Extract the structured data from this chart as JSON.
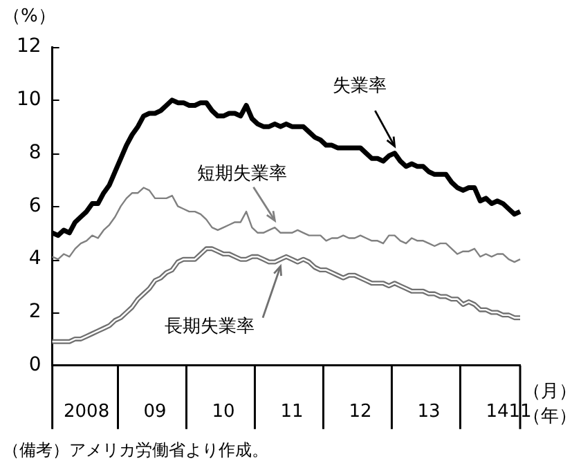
{
  "chart_data": {
    "type": "line",
    "ylabel": "（%）",
    "xlabel": "（年）",
    "categories": [
      null,
      null,
      null,
      null,
      null,
      null,
      "2008",
      null,
      null,
      null,
      null,
      null,
      null,
      null,
      null,
      null,
      null,
      null,
      "09",
      null,
      null,
      null,
      null,
      null,
      null,
      null,
      null,
      null,
      null,
      null,
      "10",
      null,
      null,
      null,
      null,
      null,
      null,
      null,
      null,
      null,
      null,
      null,
      "11",
      null,
      null,
      null,
      null,
      null,
      null,
      null,
      null,
      null,
      null,
      null,
      "12",
      null,
      null,
      null,
      null,
      null,
      null,
      null,
      null,
      null,
      null,
      null,
      "13",
      null,
      null,
      null,
      null,
      null,
      null,
      null,
      null,
      null,
      null,
      null,
      "14",
      null,
      null,
      null,
      "11"
    ],
    "ylim": [
      0,
      12
    ],
    "yticks": [
      0,
      2,
      4,
      6,
      8,
      10,
      12
    ],
    "grid": false,
    "legend": false,
    "marker": "none",
    "series": [
      {
        "name": "失業率",
        "color": "#000000",
        "values": [
          5.0,
          4.9,
          5.1,
          5.0,
          5.4,
          5.6,
          5.8,
          6.1,
          6.1,
          6.5,
          6.8,
          7.3,
          7.8,
          8.3,
          8.7,
          9.0,
          9.4,
          9.5,
          9.5,
          9.6,
          9.8,
          10.0,
          9.9,
          9.9,
          9.8,
          9.8,
          9.9,
          9.9,
          9.6,
          9.4,
          9.4,
          9.5,
          9.5,
          9.4,
          9.8,
          9.3,
          9.1,
          9.0,
          9.0,
          9.1,
          9.0,
          9.1,
          9.0,
          9.0,
          9.0,
          8.8,
          8.6,
          8.5,
          8.3,
          8.3,
          8.2,
          8.2,
          8.2,
          8.2,
          8.2,
          8.0,
          7.8,
          7.8,
          7.7,
          7.9,
          8.0,
          7.7,
          7.5,
          7.6,
          7.5,
          7.5,
          7.3,
          7.2,
          7.2,
          7.2,
          6.9,
          6.7,
          6.6,
          6.7,
          6.7,
          6.2,
          6.3,
          6.1,
          6.2,
          6.1,
          5.9,
          5.7,
          5.8
        ]
      },
      {
        "name": "短期失業率",
        "color": "#808080",
        "values": [
          4.1,
          4.0,
          4.2,
          4.1,
          4.4,
          4.6,
          4.7,
          4.9,
          4.8,
          5.1,
          5.3,
          5.6,
          6.0,
          6.3,
          6.5,
          6.5,
          6.7,
          6.6,
          6.3,
          6.3,
          6.3,
          6.4,
          6.0,
          5.9,
          5.8,
          5.8,
          5.7,
          5.5,
          5.2,
          5.1,
          5.2,
          5.3,
          5.4,
          5.4,
          5.8,
          5.2,
          5.0,
          5.0,
          5.1,
          5.2,
          5.0,
          5.0,
          5.0,
          5.1,
          5.0,
          4.9,
          4.9,
          4.9,
          4.7,
          4.8,
          4.8,
          4.9,
          4.8,
          4.8,
          4.9,
          4.8,
          4.7,
          4.7,
          4.6,
          4.9,
          4.9,
          4.7,
          4.6,
          4.8,
          4.7,
          4.7,
          4.6,
          4.5,
          4.6,
          4.6,
          4.4,
          4.2,
          4.3,
          4.3,
          4.4,
          4.1,
          4.2,
          4.1,
          4.2,
          4.2,
          4.0,
          3.9,
          4.0
        ]
      },
      {
        "name": "長期失業率",
        "color": "#707070",
        "values": [
          0.9,
          0.9,
          0.9,
          0.9,
          1.0,
          1.0,
          1.1,
          1.2,
          1.3,
          1.4,
          1.5,
          1.7,
          1.8,
          2.0,
          2.2,
          2.5,
          2.7,
          2.9,
          3.2,
          3.3,
          3.5,
          3.6,
          3.9,
          4.0,
          4.0,
          4.0,
          4.2,
          4.4,
          4.4,
          4.3,
          4.2,
          4.2,
          4.1,
          4.0,
          4.0,
          4.1,
          4.1,
          4.0,
          3.9,
          3.9,
          4.0,
          4.1,
          4.0,
          3.9,
          4.0,
          3.9,
          3.7,
          3.6,
          3.6,
          3.5,
          3.4,
          3.3,
          3.4,
          3.4,
          3.3,
          3.2,
          3.1,
          3.1,
          3.1,
          3.0,
          3.1,
          3.0,
          2.9,
          2.8,
          2.8,
          2.8,
          2.7,
          2.7,
          2.6,
          2.6,
          2.5,
          2.5,
          2.3,
          2.4,
          2.3,
          2.1,
          2.1,
          2.0,
          2.0,
          1.9,
          1.9,
          1.8,
          1.8
        ]
      }
    ],
    "annotations": [
      "（月）",
      "（備考）アメリカ労働省より作成。"
    ]
  }
}
